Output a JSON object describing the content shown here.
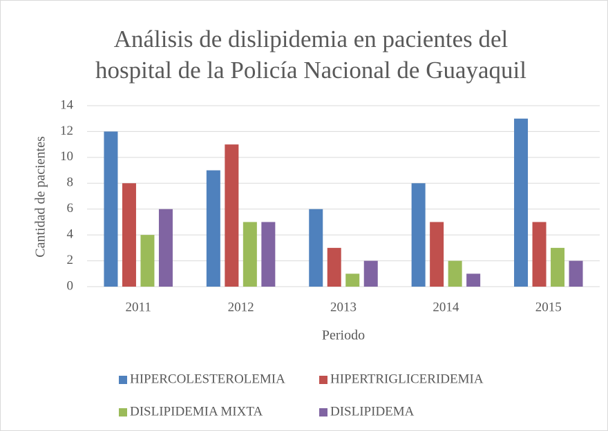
{
  "chart_data": {
    "type": "bar",
    "title": [
      "Análisis de dislipidemia en pacientes del",
      "hospital de la Policía Nacional de Guayaquil"
    ],
    "x_label": "Periodo",
    "y_label": "Cantidad de pacientes",
    "categories": [
      "2011",
      "2012",
      "2013",
      "2014",
      "2015"
    ],
    "series": [
      {
        "name": "HIPERCOLESTEROLEMIA",
        "color": "#4f81bd",
        "values": [
          12,
          9,
          6,
          8,
          13
        ]
      },
      {
        "name": "HIPERTRIGLICERIDEMIA",
        "color": "#c0504d",
        "values": [
          8,
          11,
          3,
          5,
          5
        ]
      },
      {
        "name": "DISLIPIDEMIA MIXTA",
        "color": "#9bbb59",
        "values": [
          4,
          5,
          1,
          2,
          3
        ]
      },
      {
        "name": "DISLIPIDEMA",
        "color": "#8064a2",
        "values": [
          6,
          5,
          2,
          1,
          2
        ]
      }
    ],
    "ylim": [
      0,
      14
    ],
    "yticks": [
      0,
      2,
      4,
      6,
      8,
      10,
      12,
      14
    ],
    "grid": true,
    "legend": "bottom"
  }
}
